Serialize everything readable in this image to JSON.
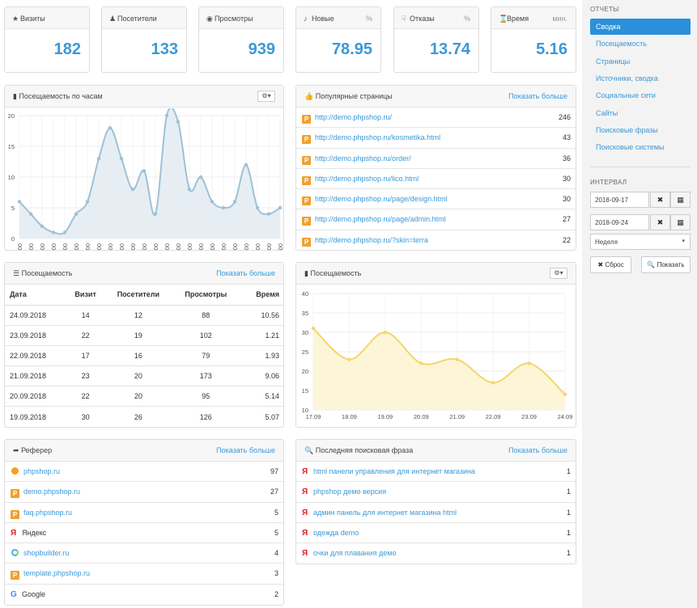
{
  "stats": [
    {
      "icon": "★",
      "label": "Визиты",
      "suffix": "",
      "value": "182"
    },
    {
      "icon": "♟",
      "label": "Посетители",
      "suffix": "",
      "value": "133"
    },
    {
      "icon": "◉",
      "label": "Просмотры",
      "suffix": "",
      "value": "939"
    },
    {
      "icon": "♪",
      "label": "Новые",
      "suffix": "%",
      "value": "78.95"
    },
    {
      "icon": "☟",
      "label": "Отказы",
      "suffix": "%",
      "value": "13.74"
    },
    {
      "icon": "⌛",
      "label": "Время",
      "suffix": "мин.",
      "value": "5.16"
    }
  ],
  "hourly": {
    "title": "Посещаемость по часам",
    "icon": "▮",
    "gear": "⚙▾"
  },
  "popular": {
    "title": "Популярные страницы",
    "icon": "👍",
    "more": "Показать больше",
    "rows": [
      {
        "badge": "P",
        "url": "http://demo.phpshop.ru/",
        "count": "246"
      },
      {
        "badge": "P",
        "url": "http://demo.phpshop.ru/kosmetika.html",
        "count": "43"
      },
      {
        "badge": "P",
        "url": "http://demo.phpshop.ru/order/",
        "count": "36"
      },
      {
        "badge": "P",
        "url": "http://demo.phpshop.ru/lico.html",
        "count": "30"
      },
      {
        "badge": "P",
        "url": "http://demo.phpshop.ru/page/design.html",
        "count": "30"
      },
      {
        "badge": "P",
        "url": "http://demo.phpshop.ru/page/admin.html",
        "count": "27"
      },
      {
        "badge": "P",
        "url": "http://demo.phpshop.ru/?skin=terra",
        "count": "22"
      }
    ]
  },
  "attendance": {
    "title": "Посещаемость",
    "icon": "☰",
    "more": "Показать больше",
    "headers": [
      "Дата",
      "Визит",
      "Посетители",
      "Просмотры",
      "Время"
    ],
    "rows": [
      [
        "24.09.2018",
        "14",
        "12",
        "88",
        "10.56"
      ],
      [
        "23.09.2018",
        "22",
        "19",
        "102",
        "1.21"
      ],
      [
        "22.09.2018",
        "17",
        "16",
        "79",
        "1.93"
      ],
      [
        "21.09.2018",
        "23",
        "20",
        "173",
        "9.06"
      ],
      [
        "20.09.2018",
        "22",
        "20",
        "95",
        "5.14"
      ],
      [
        "19.09.2018",
        "30",
        "26",
        "126",
        "5.07"
      ]
    ]
  },
  "daily": {
    "title": "Посещаемость",
    "icon": "▮",
    "gear": "⚙▾"
  },
  "referer": {
    "title": "Реферер",
    "icon": "➦",
    "more": "Показать больше",
    "rows": [
      {
        "label": "phpshop.ru",
        "count": "97",
        "kind": "O",
        "badge": ""
      },
      {
        "label": "demo.phpshop.ru",
        "count": "27",
        "kind": "P",
        "badge": "P"
      },
      {
        "label": "faq.phpshop.ru",
        "count": "5",
        "kind": "P",
        "badge": "P"
      },
      {
        "label": "Яндекс",
        "count": "5",
        "kind": "Y",
        "badge": "Я"
      },
      {
        "label": "shopbuilder.ru",
        "count": "4",
        "kind": "S",
        "badge": ""
      },
      {
        "label": "template.phpshop.ru",
        "count": "3",
        "kind": "P",
        "badge": "P"
      },
      {
        "label": "Google",
        "count": "2",
        "kind": "G",
        "badge": "G"
      }
    ]
  },
  "search": {
    "title": "Последняя поисковая фраза",
    "icon": "🔍",
    "more": "Показать больше",
    "rows": [
      {
        "badge": "Я",
        "label": "html панели управления для интернет магазина",
        "count": "1"
      },
      {
        "badge": "Я",
        "label": "phpshop демо версия",
        "count": "1"
      },
      {
        "badge": "Я",
        "label": "админ панель для интернет магазина html",
        "count": "1"
      },
      {
        "badge": "Я",
        "label": "одежда demo",
        "count": "1"
      },
      {
        "badge": "Я",
        "label": "очки для плавания демо",
        "count": "1"
      }
    ]
  },
  "sidebar": {
    "reports_label": "ОТЧЕТЫ",
    "items": [
      "Сводка",
      "Посещаемость",
      "Страницы",
      "Источники, сводка",
      "Социальные сети",
      "Сайты",
      "Поисковые фразы",
      "Поисковые системы"
    ],
    "interval_label": "ИНТЕРВАЛ",
    "date_from": "2018-09-17",
    "date_to": "2018-09-24",
    "clear_icon": "✖",
    "cal_icon": "▦",
    "period": "Неделя",
    "period_caret": "▾",
    "reset": "✖ Сброс",
    "show": "🔍 Показать"
  },
  "chart_data": [
    {
      "type": "area",
      "title": "Посещаемость по часам",
      "categories": [
        "00:00",
        "01:00",
        "02:00",
        "03:00",
        "04:00",
        "05:00",
        "06:00",
        "07:00",
        "08:00",
        "09:00",
        "10:00",
        "11:00",
        "12:00",
        "13:00",
        "14:00",
        "15:00",
        "16:00",
        "17:00",
        "18:00",
        "19:00",
        "20:00",
        "21:00",
        "22:00",
        "23:00"
      ],
      "values": [
        6,
        4,
        2,
        1,
        1,
        4,
        6,
        13,
        18,
        13,
        8,
        11,
        4,
        20,
        19,
        8,
        10,
        6,
        5,
        6,
        12,
        5,
        4,
        5
      ],
      "ylim": [
        0,
        20
      ],
      "yticks": [
        0,
        5,
        10,
        15,
        20
      ],
      "color": "#9fc1d6",
      "fill": "#e6eef4"
    },
    {
      "type": "area",
      "title": "Посещаемость",
      "categories": [
        "17.09",
        "18.09",
        "19.09",
        "20.09",
        "21.09",
        "22.09",
        "23.09",
        "24.09"
      ],
      "values": [
        31,
        23,
        30,
        22,
        23,
        17,
        22,
        14
      ],
      "ylim": [
        10,
        40
      ],
      "yticks": [
        10,
        15,
        20,
        25,
        30,
        35,
        40
      ],
      "color": "#f5d66a",
      "fill": "#fdf5d8"
    }
  ]
}
